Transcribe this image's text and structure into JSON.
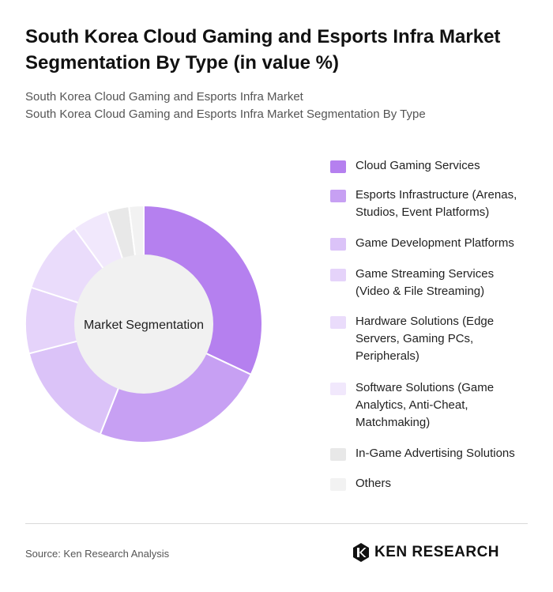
{
  "title": "South Korea Cloud Gaming and Esports Infra Market Segmentation By Type (in value %)",
  "subtitle_lines": [
    "South Korea Cloud Gaming and Esports Infra Market",
    "South Korea Cloud Gaming and Esports Infra Market Segmentation By Type"
  ],
  "chart_data": {
    "type": "pie",
    "center_label": "Market Segmentation",
    "legend_position": "right",
    "categories": [
      "Cloud Gaming Services",
      "Esports Infrastructure (Arenas, Studios, Event Platforms)",
      "Game Development Platforms",
      "Game Streaming Services (Video & File Streaming)",
      "Hardware Solutions (Edge Servers, Gaming PCs, Peripherals)",
      "Software Solutions (Game Analytics, Anti-Cheat, Matchmaking)",
      "In-Game Advertising Solutions",
      "Others"
    ],
    "values": [
      32,
      24,
      15,
      9,
      10,
      5,
      3,
      2
    ],
    "colors": [
      "#b580ef",
      "#c7a0f3",
      "#dbc3f8",
      "#e5d3fa",
      "#eadcfb",
      "#f1e8fc",
      "#e8e8e8",
      "#f2f2f2"
    ]
  },
  "source": "Source: Ken Research Analysis",
  "logo_text": "KEN RESEARCH"
}
